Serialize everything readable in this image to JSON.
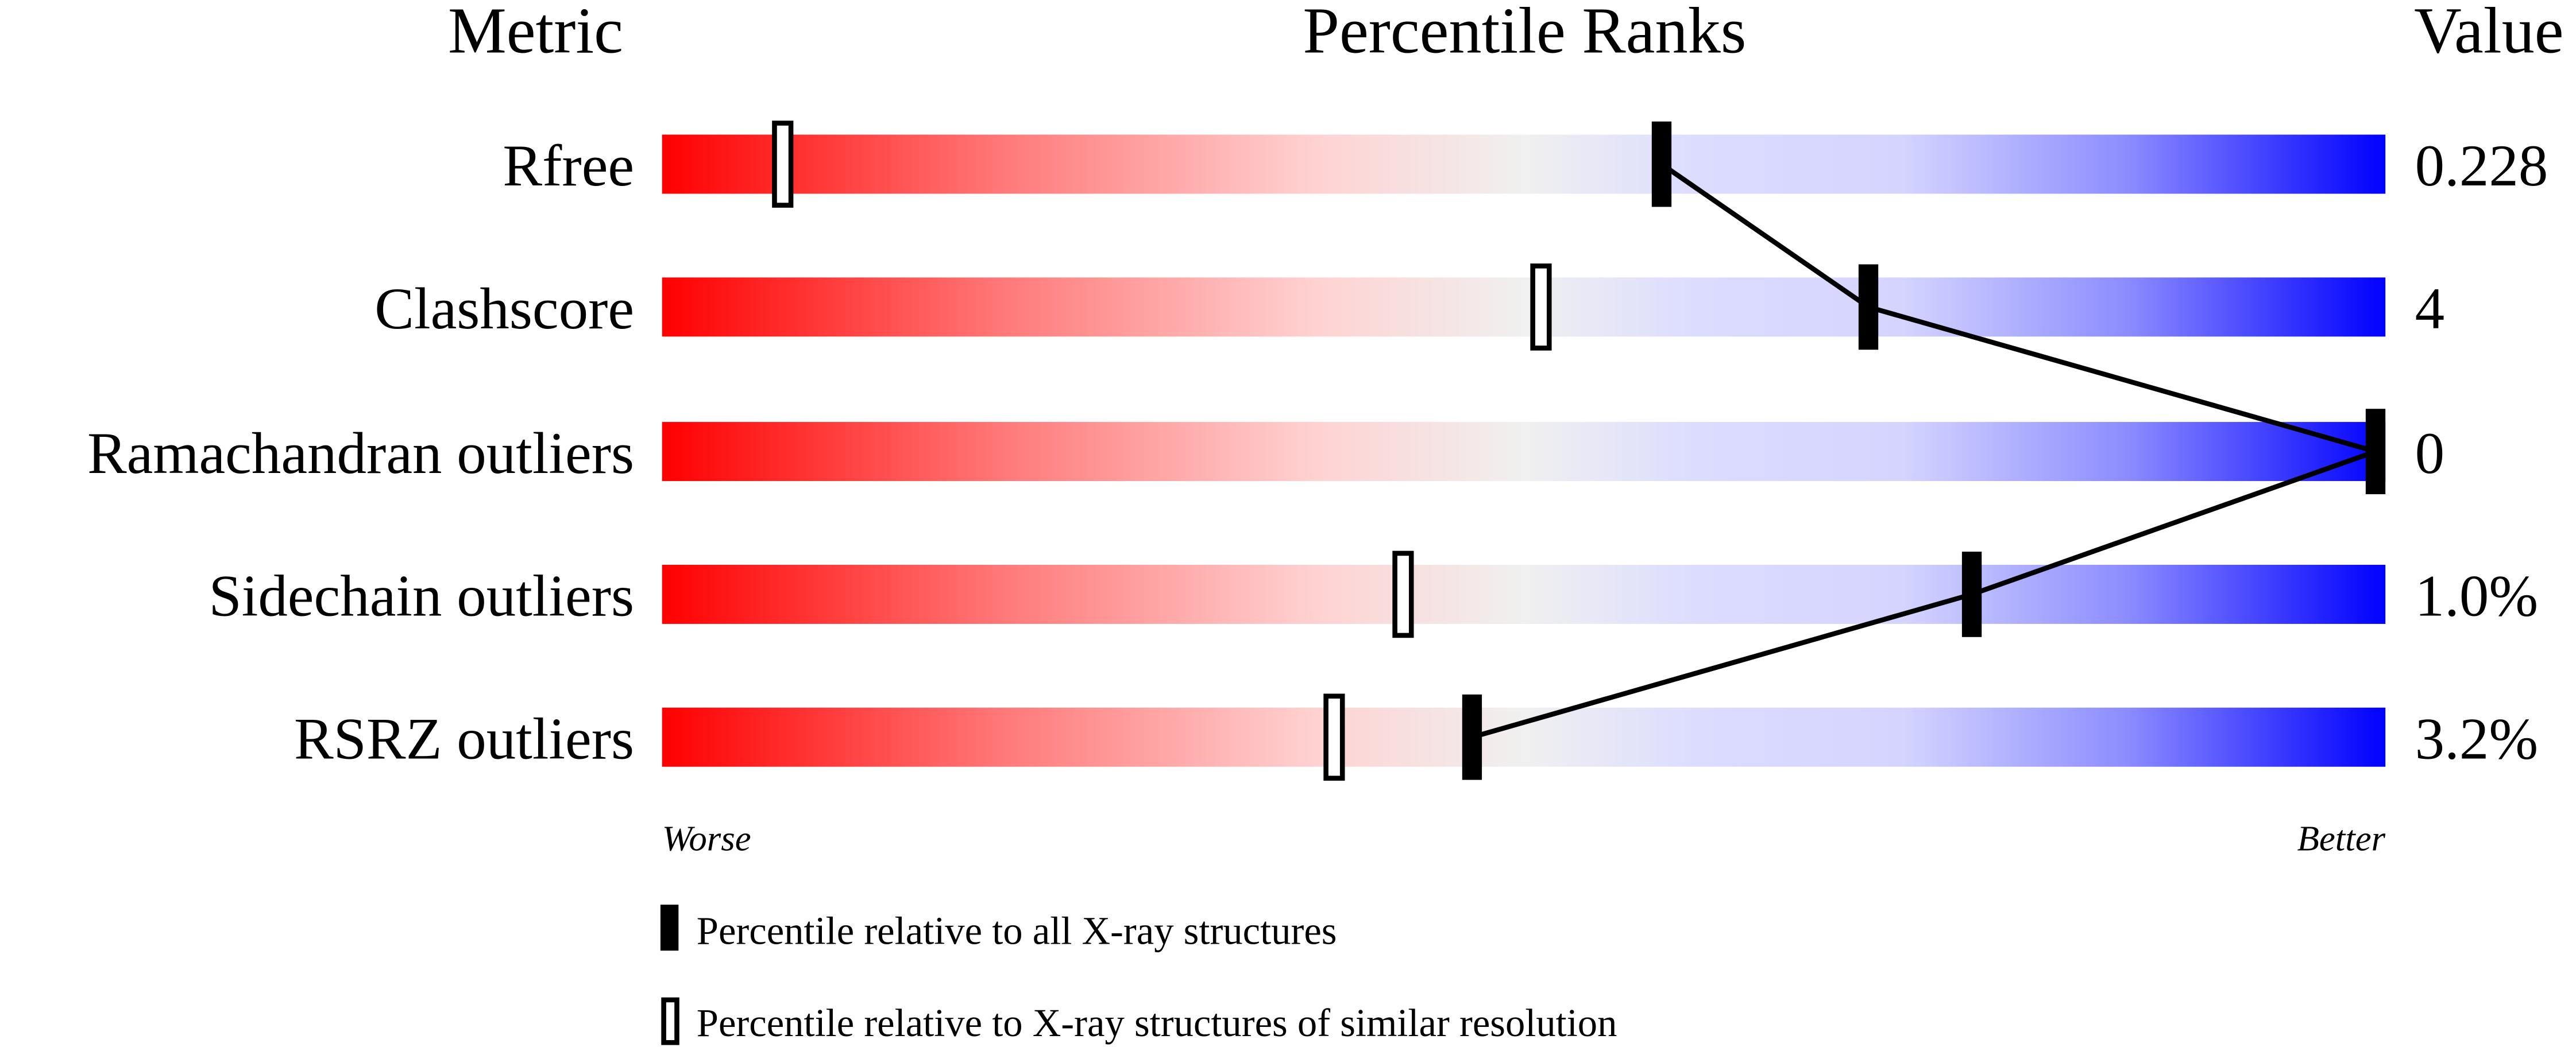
{
  "chart_data": {
    "type": "percentile-rank-bars",
    "headers": {
      "metric": "Metric",
      "ranks": "Percentile Ranks",
      "value": "Value"
    },
    "xlim": [
      0,
      100
    ],
    "axis_labels": {
      "left": "Worse",
      "right": "Better"
    },
    "metrics": [
      {
        "name": "Rfree",
        "value": "0.228",
        "percentile_all": 58,
        "percentile_similar": 7
      },
      {
        "name": "Clashscore",
        "value": "4",
        "percentile_all": 70,
        "percentile_similar": 51
      },
      {
        "name": "Ramachandran outliers",
        "value": "0",
        "percentile_all": 100,
        "percentile_similar": 100
      },
      {
        "name": "Sidechain outliers",
        "value": "1.0%",
        "percentile_all": 76,
        "percentile_similar": 43
      },
      {
        "name": "RSRZ outliers",
        "value": "3.2%",
        "percentile_all": 47,
        "percentile_similar": 39
      }
    ],
    "legend": [
      {
        "marker": "filled",
        "label": "Percentile relative to all X-ray structures"
      },
      {
        "marker": "hollow",
        "label": "Percentile relative to X-ray structures of similar resolution"
      }
    ],
    "colors": {
      "worse": "#ff0000",
      "middle": "#f0f0f0",
      "better": "#0000ff",
      "marker": "#000000"
    }
  }
}
